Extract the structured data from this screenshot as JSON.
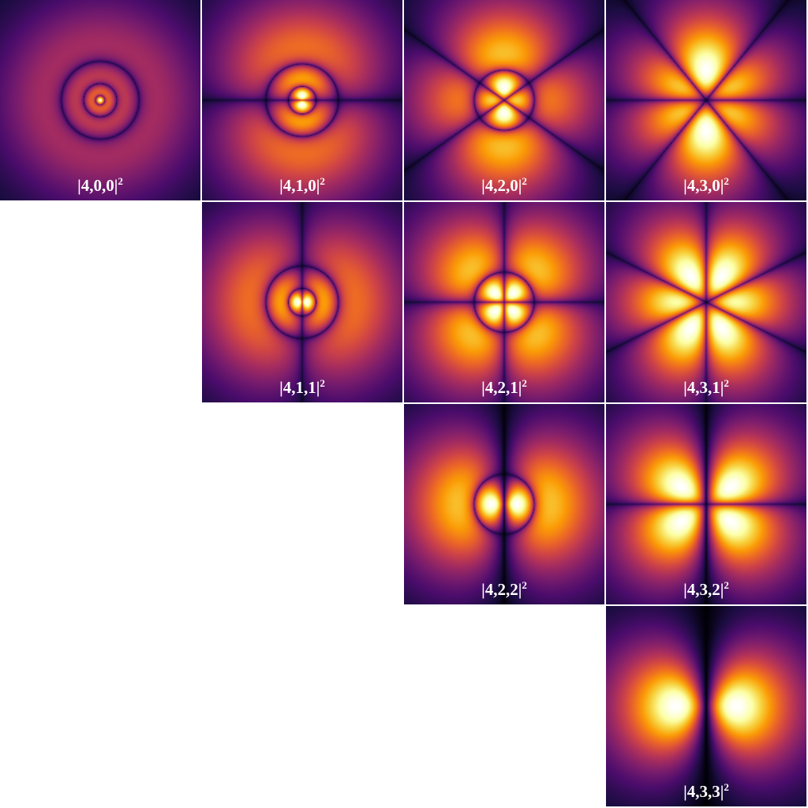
{
  "tiles": [
    {
      "label": "|4,0,0|",
      "exponent": "2",
      "n": 4,
      "l": 0,
      "m": 0
    },
    {
      "label": "|4,1,0|",
      "exponent": "2",
      "n": 4,
      "l": 1,
      "m": 0
    },
    {
      "label": "|4,2,0|",
      "exponent": "2",
      "n": 4,
      "l": 2,
      "m": 0
    },
    {
      "label": "|4,3,0|",
      "exponent": "2",
      "n": 4,
      "l": 3,
      "m": 0
    },
    {
      "label": "|4,1,1|",
      "exponent": "2",
      "n": 4,
      "l": 1,
      "m": 1
    },
    {
      "label": "|4,2,1|",
      "exponent": "2",
      "n": 4,
      "l": 2,
      "m": 1
    },
    {
      "label": "|4,3,1|",
      "exponent": "2",
      "n": 4,
      "l": 3,
      "m": 1
    },
    {
      "label": "|4,2,2|",
      "exponent": "2",
      "n": 4,
      "l": 2,
      "m": 2
    },
    {
      "label": "|4,3,2|",
      "exponent": "2",
      "n": 4,
      "l": 3,
      "m": 2
    },
    {
      "label": "|4,3,3|",
      "exponent": "2",
      "n": 4,
      "l": 3,
      "m": 3
    }
  ],
  "colormap": [
    "#000004",
    "#1b0c41",
    "#4a0c6b",
    "#781c6d",
    "#a52c60",
    "#cf4446",
    "#ed6925",
    "#fb9b06",
    "#f7d13d",
    "#fcffa4",
    "#ffffff"
  ]
}
